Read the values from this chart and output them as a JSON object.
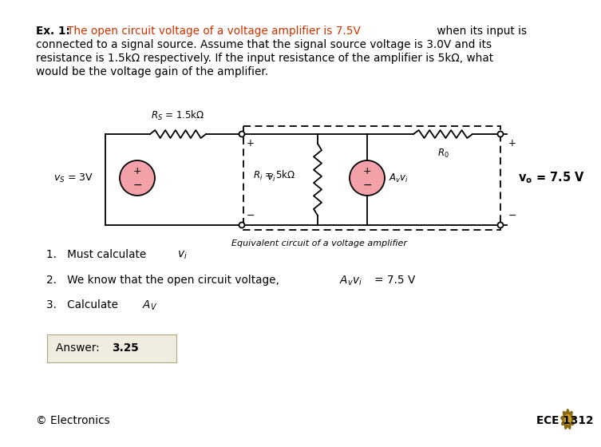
{
  "bg_color": "#ffffff",
  "orange_color": "#cc3300",
  "pink_color": "#f4a0a8",
  "answer_bg": "#f0ede0",
  "circuit_caption": "Equivalent circuit of a voltage amplifier",
  "footer_left": "© Electronics",
  "footer_right": "ECE 1312"
}
